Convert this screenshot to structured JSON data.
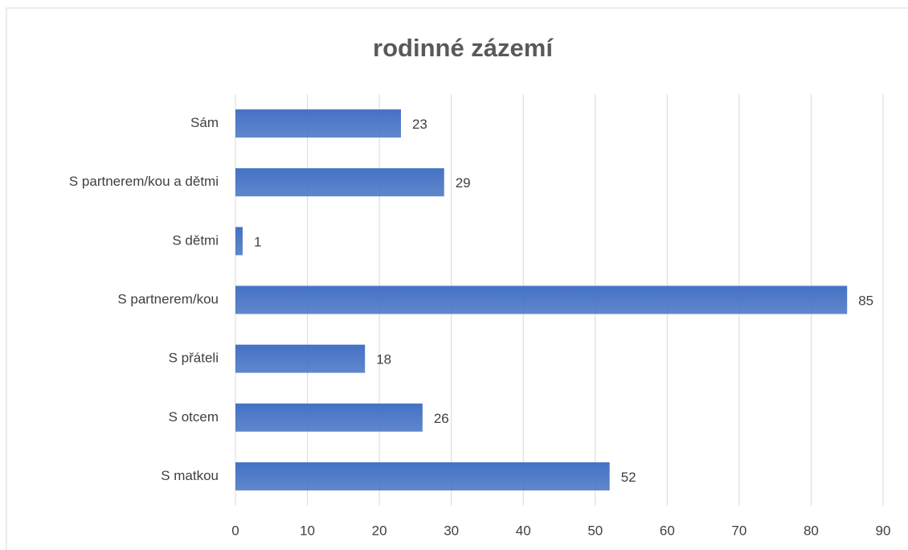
{
  "chart_data": {
    "type": "bar",
    "orientation": "horizontal",
    "title": "rodinné zázemí",
    "categories": [
      "Sám",
      "S partnerem/kou a dětmi",
      "S dětmi",
      "S partnerem/kou",
      "S přáteli",
      "S otcem",
      "S matkou"
    ],
    "values": [
      23,
      29,
      1,
      85,
      18,
      26,
      52
    ],
    "color": "#4472c4",
    "xlim": [
      0,
      90
    ],
    "xticks": [
      0,
      10,
      20,
      30,
      40,
      50,
      60,
      70,
      80,
      90
    ],
    "grid": true
  }
}
